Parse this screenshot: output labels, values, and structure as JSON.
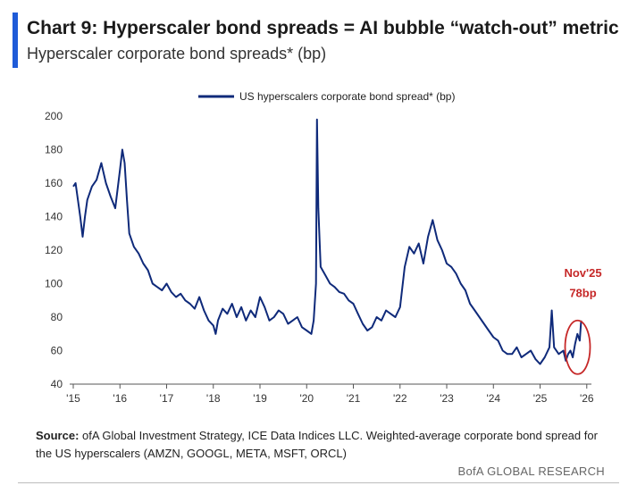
{
  "header": {
    "title": "Chart 9: Hyperscaler bond spreads = AI bubble “watch-out” metric",
    "subtitle": "Hyperscaler corporate bond spreads* (bp)"
  },
  "colors": {
    "accent": "#1f5bd8",
    "series": "#0f2a7a",
    "annotation": "#c62828"
  },
  "chart_data": {
    "type": "line",
    "title": "",
    "xlabel": "",
    "ylabel": "",
    "xlim": [
      2015,
      2026.1
    ],
    "ylim": [
      40,
      200
    ],
    "y_ticks": [
      40,
      60,
      80,
      100,
      120,
      140,
      160,
      180,
      200
    ],
    "x_ticks": [
      {
        "value": 2015,
        "label": "'15"
      },
      {
        "value": 2016,
        "label": "'16"
      },
      {
        "value": 2017,
        "label": "'17"
      },
      {
        "value": 2018,
        "label": "'18"
      },
      {
        "value": 2019,
        "label": "'19"
      },
      {
        "value": 2020,
        "label": "'20"
      },
      {
        "value": 2021,
        "label": "'21"
      },
      {
        "value": 2022,
        "label": "'22"
      },
      {
        "value": 2023,
        "label": "'23"
      },
      {
        "value": 2024,
        "label": "'24"
      },
      {
        "value": 2025,
        "label": "'25"
      },
      {
        "value": 2026,
        "label": "'26"
      }
    ],
    "grid": false,
    "legend_position": "top-center",
    "series": [
      {
        "name": "US hyperscalers corporate bond spread* (bp)",
        "x": [
          2015.0,
          2015.05,
          2015.1,
          2015.15,
          2015.2,
          2015.25,
          2015.3,
          2015.4,
          2015.5,
          2015.6,
          2015.65,
          2015.7,
          2015.8,
          2015.9,
          2016.0,
          2016.05,
          2016.1,
          2016.15,
          2016.2,
          2016.3,
          2016.4,
          2016.5,
          2016.6,
          2016.7,
          2016.8,
          2016.9,
          2017.0,
          2017.1,
          2017.2,
          2017.3,
          2017.4,
          2017.5,
          2017.6,
          2017.7,
          2017.8,
          2017.9,
          2018.0,
          2018.05,
          2018.1,
          2018.2,
          2018.3,
          2018.4,
          2018.5,
          2018.6,
          2018.7,
          2018.8,
          2018.9,
          2019.0,
          2019.1,
          2019.2,
          2019.3,
          2019.4,
          2019.5,
          2019.6,
          2019.7,
          2019.8,
          2019.9,
          2020.0,
          2020.1,
          2020.15,
          2020.2,
          2020.22,
          2020.25,
          2020.3,
          2020.4,
          2020.5,
          2020.6,
          2020.7,
          2020.8,
          2020.9,
          2021.0,
          2021.1,
          2021.2,
          2021.3,
          2021.4,
          2021.5,
          2021.6,
          2021.7,
          2021.8,
          2021.9,
          2022.0,
          2022.1,
          2022.2,
          2022.3,
          2022.4,
          2022.5,
          2022.6,
          2022.7,
          2022.8,
          2022.9,
          2023.0,
          2023.1,
          2023.2,
          2023.3,
          2023.4,
          2023.5,
          2023.6,
          2023.7,
          2023.8,
          2023.9,
          2024.0,
          2024.1,
          2024.2,
          2024.3,
          2024.4,
          2024.5,
          2024.6,
          2024.7,
          2024.8,
          2024.9,
          2025.0,
          2025.1,
          2025.2,
          2025.25,
          2025.3,
          2025.4,
          2025.5,
          2025.55,
          2025.6,
          2025.65,
          2025.7,
          2025.75,
          2025.8,
          2025.85,
          2025.88
        ],
        "values": [
          158,
          160,
          150,
          140,
          128,
          140,
          150,
          158,
          162,
          172,
          166,
          160,
          152,
          145,
          168,
          180,
          172,
          150,
          130,
          122,
          118,
          112,
          108,
          100,
          98,
          96,
          100,
          95,
          92,
          94,
          90,
          88,
          85,
          92,
          84,
          78,
          75,
          70,
          78,
          85,
          82,
          88,
          80,
          86,
          78,
          84,
          80,
          92,
          86,
          78,
          80,
          84,
          82,
          76,
          78,
          80,
          74,
          72,
          70,
          78,
          100,
          198,
          145,
          110,
          105,
          100,
          98,
          95,
          94,
          90,
          88,
          82,
          76,
          72,
          74,
          80,
          78,
          84,
          82,
          80,
          86,
          110,
          122,
          118,
          124,
          112,
          128,
          138,
          126,
          120,
          112,
          110,
          106,
          100,
          96,
          88,
          84,
          80,
          76,
          72,
          68,
          66,
          60,
          58,
          58,
          62,
          56,
          58,
          60,
          55,
          52,
          56,
          62,
          84,
          62,
          58,
          60,
          54,
          58,
          60,
          56,
          64,
          70,
          66,
          78
        ]
      }
    ],
    "annotations": [
      {
        "text_line1": "Nov'25",
        "text_line2": "78bp",
        "x": 2025.88,
        "y": 78
      }
    ]
  },
  "footer": {
    "source_label": "Source:",
    "source_text": " ofA Global Investment Strategy, ICE Data Indices LLC. Weighted-average corporate bond spread for the US hyperscalers (AMZN, GOOGL, META, MSFT, ORCL)",
    "brand": "BofA GLOBAL RESEARCH"
  }
}
